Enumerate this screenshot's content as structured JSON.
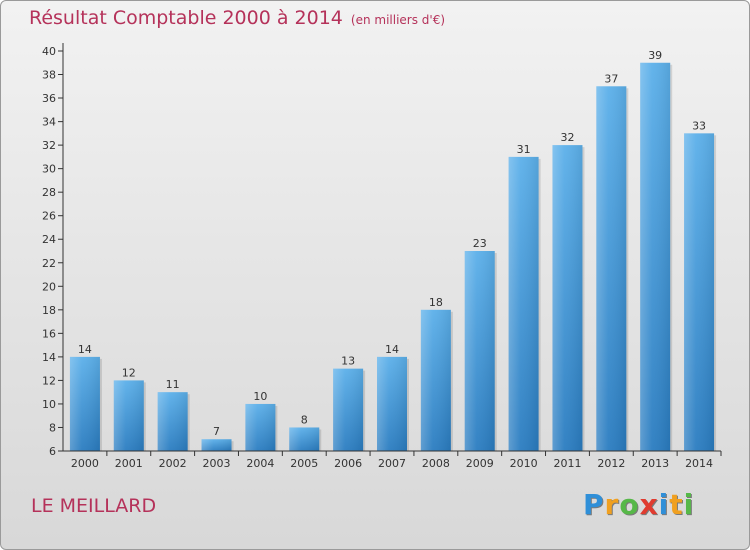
{
  "header": {
    "title": "Résultat Comptable 2000 à 2014",
    "subtitle": "(en milliers d'€)"
  },
  "footer": {
    "commune": "LE MEILLARD",
    "logo_text": "Proxiti",
    "logo_letters": [
      {
        "ch": "P",
        "color": "#2f8fd8"
      },
      {
        "ch": "r",
        "color": "#f0a020"
      },
      {
        "ch": "o",
        "color": "#56b848"
      },
      {
        "ch": "x",
        "color": "#e03b2f"
      },
      {
        "ch": "i",
        "color": "#2f8fd8"
      },
      {
        "ch": "t",
        "color": "#f0a020"
      },
      {
        "ch": "i",
        "color": "#56b848"
      }
    ]
  },
  "colors": {
    "title": "#b5325a",
    "bar_top": "#5cb0ea",
    "bar_bottom": "#2a7cc0",
    "axis": "#333333",
    "grid": "#d0d0d0"
  },
  "chart_data": {
    "type": "bar",
    "title": "Résultat Comptable 2000 à 2014",
    "subtitle": "(en milliers d'€)",
    "categories": [
      "2000",
      "2001",
      "2002",
      "2003",
      "2004",
      "2005",
      "2006",
      "2007",
      "2008",
      "2009",
      "2010",
      "2011",
      "2012",
      "2013",
      "2014"
    ],
    "values": [
      14,
      12,
      11,
      7,
      10,
      8,
      13,
      14,
      18,
      23,
      31,
      32,
      37,
      39,
      33
    ],
    "ylim": [
      6,
      40
    ],
    "yticks": [
      6,
      8,
      10,
      12,
      14,
      16,
      18,
      20,
      22,
      24,
      26,
      28,
      30,
      32,
      34,
      36,
      38,
      40
    ],
    "grid": false,
    "data_labels": true
  }
}
